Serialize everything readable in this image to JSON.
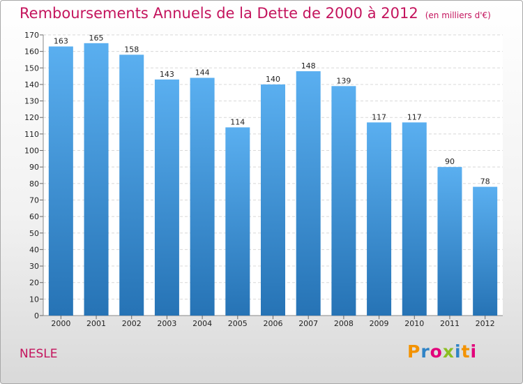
{
  "header": {
    "title": "Remboursements Annuels de la Dette de 2000 à 2012",
    "unit": "(en milliers d'€)"
  },
  "footer": {
    "place": "NESLE",
    "logo": {
      "text": "Proxiti",
      "letter_colors": [
        "#f39200",
        "#2f83c6",
        "#e2007a",
        "#8cbe22",
        "#2f83c6",
        "#f39200",
        "#e2007a"
      ]
    }
  },
  "colors": {
    "title": "#c4145d",
    "bar_top": "#5aaff0",
    "bar_bottom": "#2673b5"
  },
  "chart_data": {
    "type": "bar",
    "title": "Remboursements Annuels de la Dette de 2000 à 2012",
    "categories": [
      "2000",
      "2001",
      "2002",
      "2003",
      "2004",
      "2005",
      "2006",
      "2007",
      "2008",
      "2009",
      "2010",
      "2011",
      "2012"
    ],
    "values": [
      163,
      165,
      158,
      143,
      144,
      114,
      140,
      148,
      139,
      117,
      117,
      90,
      78
    ],
    "ylim": [
      0,
      170
    ],
    "yticks": [
      0,
      10,
      20,
      30,
      40,
      50,
      60,
      70,
      80,
      90,
      100,
      110,
      120,
      130,
      140,
      150,
      160,
      170
    ],
    "grid": true,
    "legend": "none"
  }
}
